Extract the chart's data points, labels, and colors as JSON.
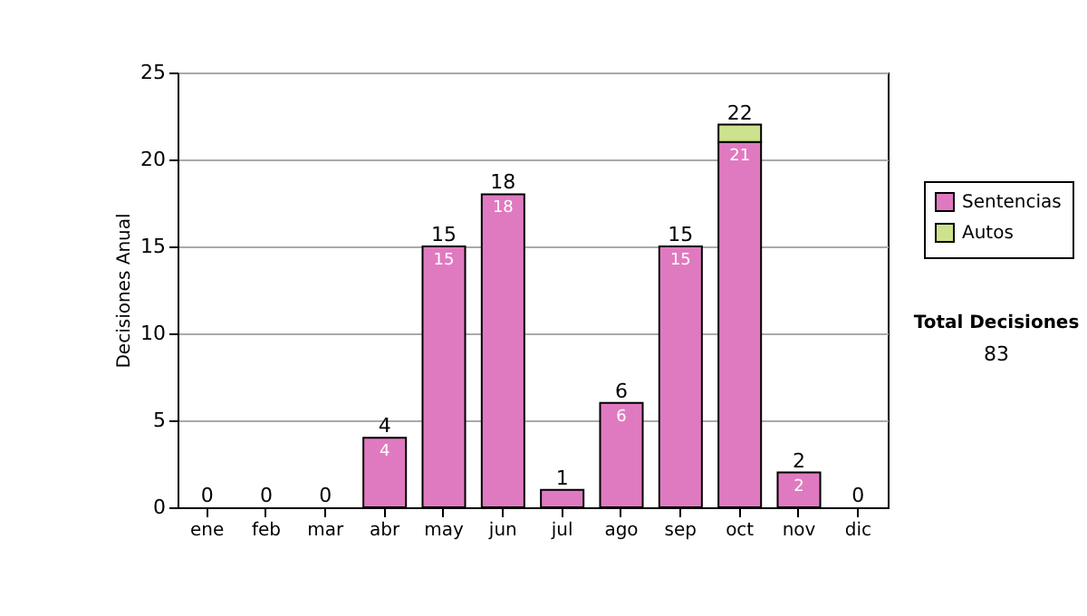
{
  "chart_data": {
    "type": "bar",
    "stacked": true,
    "ylabel": "Decisiones Anual",
    "categories": [
      "ene",
      "feb",
      "mar",
      "abr",
      "may",
      "jun",
      "jul",
      "ago",
      "sep",
      "oct",
      "nov",
      "dic"
    ],
    "series": [
      {
        "name": "Sentencias",
        "color": "#e07ac0",
        "values": [
          0,
          0,
          0,
          4,
          15,
          18,
          1,
          6,
          15,
          21,
          2,
          0
        ],
        "value_labels": [
          null,
          null,
          null,
          "4",
          "15",
          "18",
          null,
          "6",
          "15",
          "21",
          "2",
          null
        ]
      },
      {
        "name": "Autos",
        "color": "#cde28c",
        "values": [
          0,
          0,
          0,
          0,
          0,
          0,
          0,
          0,
          0,
          1,
          0,
          0
        ]
      }
    ],
    "totals": [
      "0",
      "0",
      "0",
      "4",
      "15",
      "18",
      "1",
      "6",
      "15",
      "22",
      "2",
      "0"
    ],
    "ylim": [
      0,
      25
    ],
    "yticks": [
      0,
      5,
      10,
      15,
      20,
      25
    ],
    "grid": "y",
    "legend": "right",
    "annotations": [
      "Total Decisiones",
      "83"
    ]
  }
}
